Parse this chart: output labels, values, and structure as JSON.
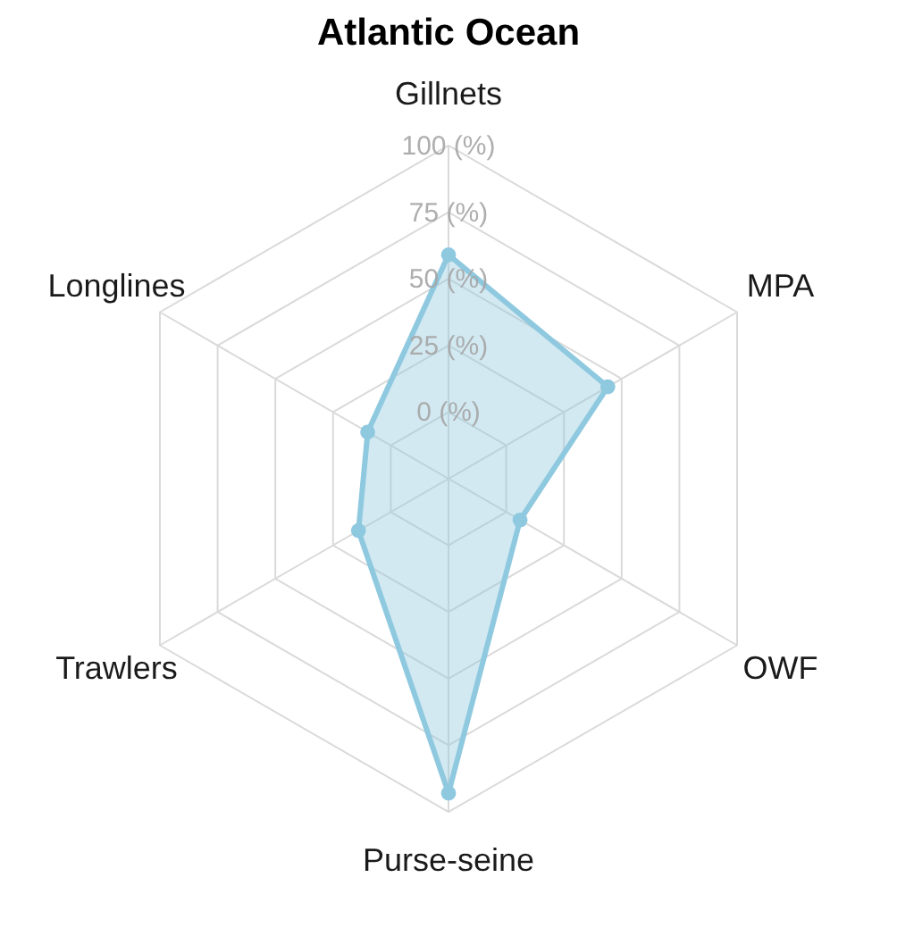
{
  "chart_data": {
    "type": "radar",
    "title": "Atlantic Ocean",
    "categories": [
      "Gillnets",
      "MPA",
      "OWF",
      "Purse-seine",
      "Trawlers",
      "Longlines"
    ],
    "series": [
      {
        "color": "#8fc9df",
        "values": [
          59,
          44,
          6,
          93,
          14,
          10
        ]
      }
    ],
    "ylim": [
      -25,
      100
    ],
    "yticks": [
      {
        "value": 0,
        "label": "0 (%)"
      },
      {
        "value": 25,
        "label": "25 (%)"
      },
      {
        "value": 50,
        "label": "50 (%)"
      },
      {
        "value": 75,
        "label": "75 (%)"
      },
      {
        "value": 100,
        "label": "100 (%)"
      }
    ],
    "grid": true,
    "marker": "circle"
  }
}
